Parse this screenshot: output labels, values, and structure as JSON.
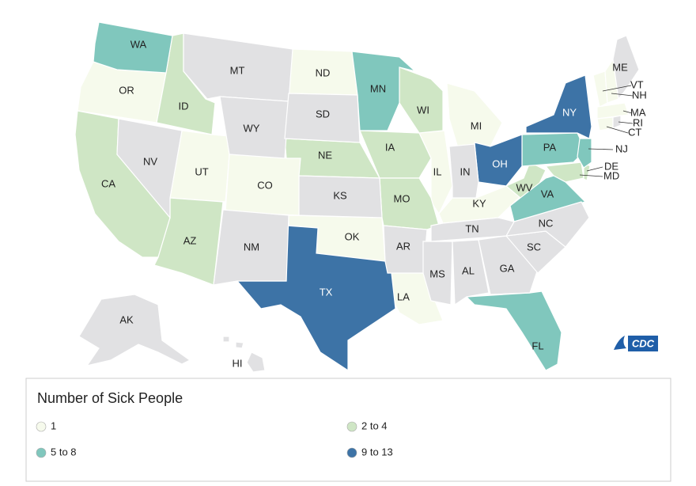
{
  "map": {
    "legend_title": "Number of Sick People",
    "legend": [
      {
        "label": "1",
        "color": "#f6faec",
        "states": [
          "OR",
          "UT",
          "CO",
          "ND",
          "OK",
          "IL",
          "MI",
          "KY",
          "LA",
          "VT",
          "NH",
          "MA",
          "CT"
        ]
      },
      {
        "label": "2 to 4",
        "color": "#cfe6c5",
        "states": [
          "CA",
          "ID",
          "AZ",
          "NE",
          "IA",
          "MO",
          "WI",
          "WV",
          "MD",
          "DE"
        ]
      },
      {
        "label": "5 to 8",
        "color": "#80c7bd",
        "states": [
          "WA",
          "MN",
          "PA",
          "NJ",
          "VA",
          "FL"
        ]
      },
      {
        "label": "9 to 13",
        "color": "#3d73a6",
        "states": [
          "TX",
          "OH",
          "NY"
        ]
      }
    ],
    "no_data": {
      "color": "#e1e1e3",
      "states": [
        "NV",
        "MT",
        "WY",
        "NM",
        "SD",
        "KS",
        "AR",
        "MS",
        "AL",
        "GA",
        "SC",
        "NC",
        "TN",
        "IN",
        "ME",
        "RI",
        "AK",
        "HI"
      ]
    },
    "logo": "CDC"
  }
}
